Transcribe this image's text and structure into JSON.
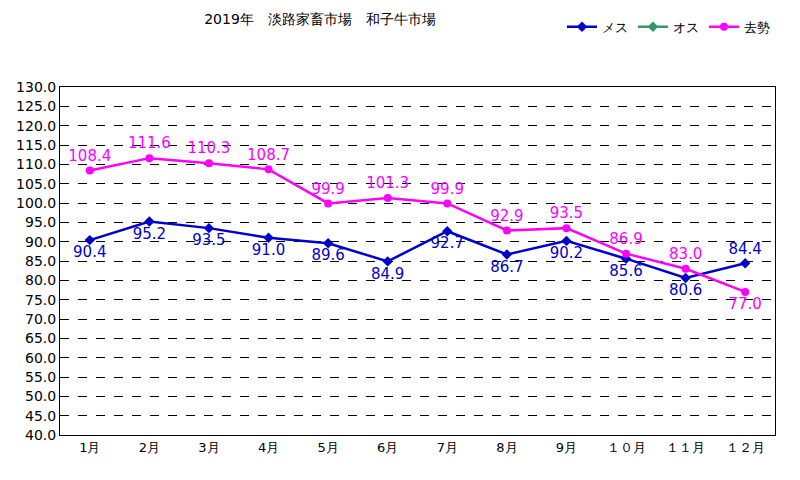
{
  "chart_data": {
    "type": "line",
    "title": "2019年　淡路家畜市場　和子牛市場",
    "categories": [
      "1月",
      "2月",
      "3月",
      "4月",
      "5月",
      "6月",
      "7月",
      "8月",
      "9月",
      "１０月",
      "１１月",
      "１２月"
    ],
    "series": [
      {
        "name": "メス",
        "color": "#0000cc",
        "marker": "diamond",
        "values": [
          90.4,
          95.2,
          93.5,
          91.0,
          89.6,
          84.9,
          92.7,
          86.7,
          90.2,
          85.6,
          80.6,
          84.4
        ],
        "value_labels": [
          "90.4",
          "95.2",
          "93.5",
          "91.0",
          "89.6",
          "84.9",
          "92.7",
          "86.7",
          "90.2",
          "85.6",
          "80.6",
          "84.4"
        ]
      },
      {
        "name": "オス",
        "color": "#339966",
        "marker": "diamond",
        "values": [
          null,
          null,
          null,
          null,
          null,
          null,
          null,
          null,
          null,
          null,
          null,
          null
        ],
        "value_labels": [
          null,
          null,
          null,
          null,
          null,
          null,
          null,
          null,
          null,
          null,
          null,
          null
        ]
      },
      {
        "name": "去勢",
        "color": "#ff00ff",
        "marker": "circle",
        "values": [
          108.4,
          111.6,
          110.3,
          108.7,
          99.9,
          101.3,
          99.9,
          92.9,
          93.5,
          86.9,
          83.0,
          77.0
        ],
        "value_labels": [
          "108.4",
          "111.6",
          "110.3",
          "108.7",
          "99.9",
          "101.3",
          "99.9",
          "92.9",
          "93.5",
          "86.9",
          "83.0",
          "77.0"
        ]
      }
    ],
    "ylim": [
      40,
      130
    ],
    "yticks": [
      {
        "value": 40,
        "label": "40.0"
      },
      {
        "value": 45,
        "label": "45.0"
      },
      {
        "value": 50,
        "label": "50.0"
      },
      {
        "value": 55,
        "label": "55.0"
      },
      {
        "value": 60,
        "label": "60.0"
      },
      {
        "value": 65,
        "label": "65.0"
      },
      {
        "value": 70,
        "label": "70.0"
      },
      {
        "value": 75,
        "label": "75.0"
      },
      {
        "value": 80,
        "label": "80.0"
      },
      {
        "value": 85,
        "label": "85.0"
      },
      {
        "value": 90,
        "label": "90.0"
      },
      {
        "value": 95,
        "label": "95.0"
      },
      {
        "value": 100,
        "label": "100.0"
      },
      {
        "value": 105,
        "label": "105.0"
      },
      {
        "value": 110,
        "label": "110.0"
      },
      {
        "value": 115,
        "label": "115.0"
      },
      {
        "value": 120,
        "label": "120.0"
      },
      {
        "value": 125,
        "label": "125.0"
      },
      {
        "value": 130,
        "label": "130.0"
      }
    ],
    "grid": true,
    "legend": "top right",
    "data_labels": true
  }
}
